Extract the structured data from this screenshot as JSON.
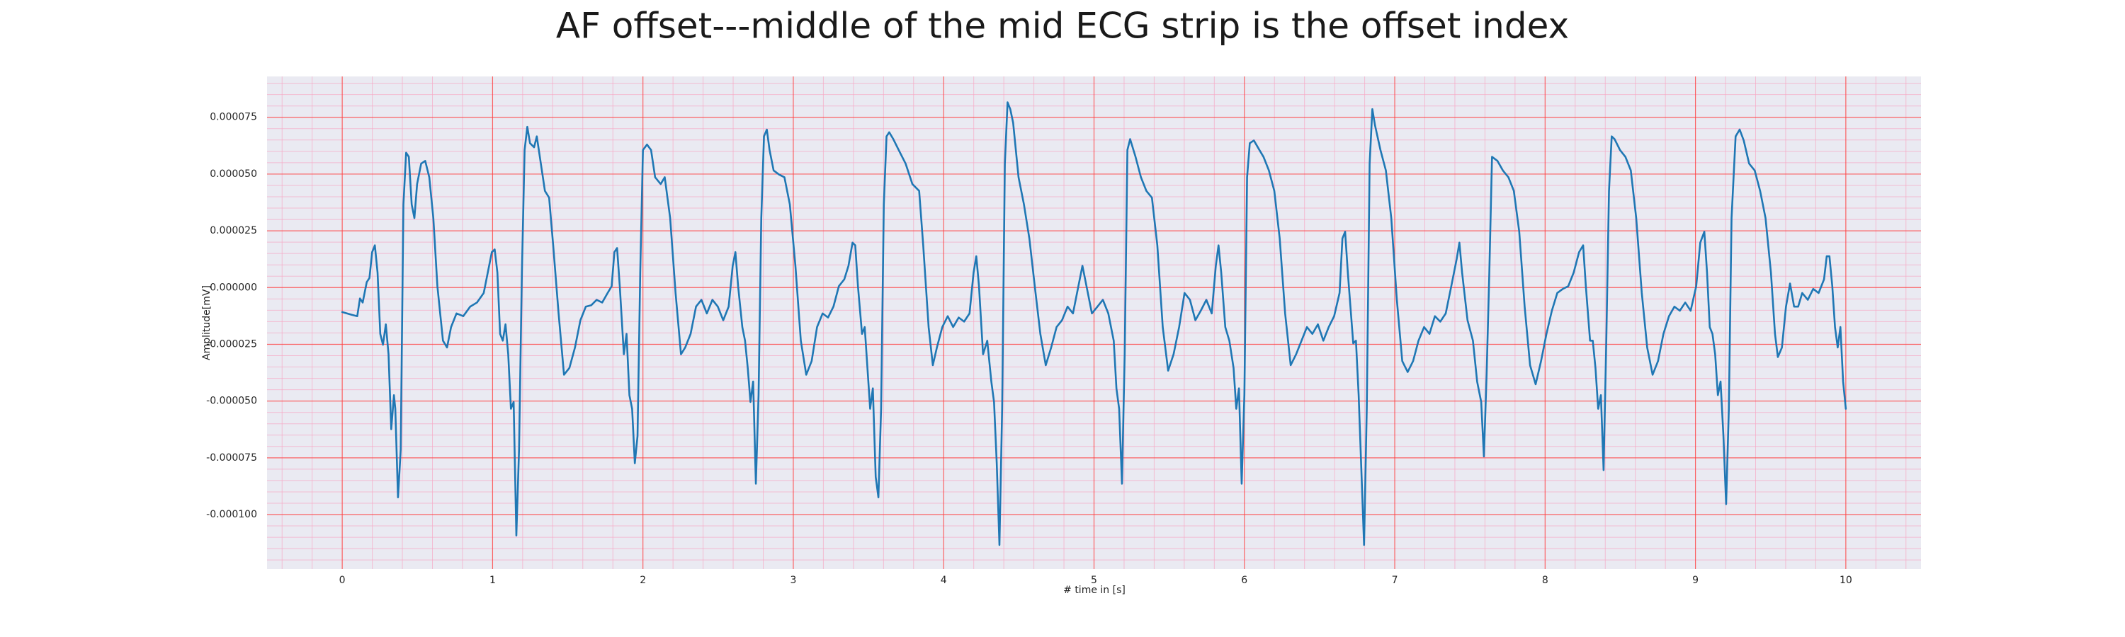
{
  "chart_data": {
    "type": "line",
    "title": "AF offset---middle of the mid ECG strip is the offset index",
    "xlabel": "# time in [s]",
    "ylabel": "Amplitude[mV]",
    "color": "#1f77b4",
    "grid": true,
    "minor_grid": true,
    "xlim": [
      -0.5,
      10.5
    ],
    "ylim": [
      -0.000124,
      9.3e-05
    ],
    "xticks": [
      0,
      1,
      2,
      3,
      4,
      5,
      6,
      7,
      8,
      9,
      10
    ],
    "yticks": [
      {
        "value": -0.0001,
        "label": "-0.000100"
      },
      {
        "value": -7.5e-05,
        "label": "-0.000075"
      },
      {
        "value": -5e-05,
        "label": "-0.000050"
      },
      {
        "value": -2.5e-05,
        "label": "-0.000025"
      },
      {
        "value": 0,
        "label": "0.000000"
      },
      {
        "value": 2.5e-05,
        "label": "0.000025"
      },
      {
        "value": 5e-05,
        "label": "0.000050"
      },
      {
        "value": 7.5e-05,
        "label": "0.000075"
      }
    ],
    "x": [
      0,
      0.063,
      0.1,
      0.118,
      0.136,
      0.163,
      0.181,
      0.199,
      0.217,
      0.235,
      0.253,
      0.271,
      0.29,
      0.308,
      0.326,
      0.344,
      0.353,
      0.371,
      0.389,
      0.407,
      0.425,
      0.443,
      0.462,
      0.48,
      0.498,
      0.525,
      0.552,
      0.579,
      0.606,
      0.633,
      0.67,
      0.697,
      0.724,
      0.76,
      0.805,
      0.851,
      0.896,
      0.941,
      0.968,
      0.995,
      1.014,
      1.032,
      1.05,
      1.068,
      1.086,
      1.104,
      1.122,
      1.14,
      1.158,
      1.176,
      1.195,
      1.213,
      1.231,
      1.249,
      1.276,
      1.294,
      1.321,
      1.348,
      1.376,
      1.403,
      1.439,
      1.475,
      1.511,
      1.548,
      1.584,
      1.62,
      1.656,
      1.692,
      1.729,
      1.765,
      1.792,
      1.81,
      1.828,
      1.846,
      1.873,
      1.891,
      1.91,
      1.928,
      1.946,
      1.964,
      1.982,
      2.0,
      2.027,
      2.054,
      2.081,
      2.118,
      2.145,
      2.181,
      2.217,
      2.253,
      2.281,
      2.317,
      2.353,
      2.389,
      2.425,
      2.462,
      2.498,
      2.534,
      2.57,
      2.597,
      2.615,
      2.633,
      2.661,
      2.679,
      2.697,
      2.715,
      2.733,
      2.751,
      2.769,
      2.787,
      2.805,
      2.824,
      2.842,
      2.869,
      2.905,
      2.941,
      2.977,
      3.014,
      3.05,
      3.086,
      3.122,
      3.158,
      3.195,
      3.231,
      3.267,
      3.303,
      3.339,
      3.367,
      3.394,
      3.412,
      3.43,
      3.457,
      3.475,
      3.493,
      3.511,
      3.529,
      3.548,
      3.566,
      3.584,
      3.602,
      3.62,
      3.638,
      3.665,
      3.701,
      3.747,
      3.792,
      3.837,
      3.864,
      3.9,
      3.928,
      3.955,
      3.991,
      4.027,
      4.063,
      4.1,
      4.136,
      4.172,
      4.199,
      4.217,
      4.235,
      4.262,
      4.29,
      4.317,
      4.335,
      4.353,
      4.371,
      4.389,
      4.407,
      4.425,
      4.443,
      4.462,
      4.498,
      4.534,
      4.57,
      4.606,
      4.643,
      4.679,
      4.715,
      4.751,
      4.787,
      4.824,
      4.86,
      4.896,
      4.923,
      4.95,
      4.986,
      5.023,
      5.059,
      5.095,
      5.131,
      5.149,
      5.167,
      5.186,
      5.204,
      5.222,
      5.24,
      5.276,
      5.312,
      5.348,
      5.385,
      5.421,
      5.457,
      5.493,
      5.529,
      5.566,
      5.602,
      5.638,
      5.674,
      5.71,
      5.747,
      5.783,
      5.81,
      5.828,
      5.846,
      5.873,
      5.9,
      5.928,
      5.946,
      5.964,
      5.982,
      6.0,
      6.018,
      6.036,
      6.063,
      6.1,
      6.127,
      6.163,
      6.199,
      6.235,
      6.271,
      6.308,
      6.344,
      6.38,
      6.416,
      6.452,
      6.489,
      6.525,
      6.561,
      6.597,
      6.633,
      6.652,
      6.67,
      6.688,
      6.724,
      6.742,
      6.76,
      6.778,
      6.796,
      6.814,
      6.833,
      6.851,
      6.869,
      6.905,
      6.941,
      6.977,
      7.014,
      7.05,
      7.086,
      7.122,
      7.158,
      7.195,
      7.231,
      7.267,
      7.303,
      7.339,
      7.376,
      7.412,
      7.43,
      7.448,
      7.484,
      7.52,
      7.548,
      7.575,
      7.593,
      7.611,
      7.629,
      7.647,
      7.683,
      7.719,
      7.756,
      7.792,
      7.828,
      7.864,
      7.9,
      7.937,
      7.973,
      8.009,
      8.045,
      8.081,
      8.118,
      8.154,
      8.19,
      8.226,
      8.253,
      8.271,
      8.299,
      8.317,
      8.335,
      8.353,
      8.371,
      8.389,
      8.407,
      8.425,
      8.443,
      8.462,
      8.498,
      8.534,
      8.57,
      8.606,
      8.643,
      8.679,
      8.715,
      8.751,
      8.787,
      8.824,
      8.86,
      8.896,
      8.932,
      8.968,
      9.005,
      9.032,
      9.059,
      9.077,
      9.095,
      9.113,
      9.131,
      9.149,
      9.167,
      9.186,
      9.204,
      9.222,
      9.24,
      9.267,
      9.294,
      9.321,
      9.357,
      9.394,
      9.43,
      9.466,
      9.502,
      9.529,
      9.548,
      9.575,
      9.602,
      9.629,
      9.656,
      9.683,
      9.71,
      9.747,
      9.783,
      9.819,
      9.855,
      9.873,
      9.891,
      9.91,
      9.928,
      9.946,
      9.964,
      9.982,
      10.0
    ],
    "values": [
      -1.08e-05,
      -1.2e-05,
      -1.26e-05,
      -4.8e-06,
      -6.6e-06,
      2.4e-06,
      4.2e-06,
      1.56e-05,
      1.86e-05,
      6.6e-06,
      -2.04e-05,
      -2.52e-05,
      -1.62e-05,
      -2.94e-05,
      -6.24e-05,
      -4.74e-05,
      -5.34e-05,
      -9.24e-05,
      -7.14e-05,
      3.66e-05,
      5.94e-05,
      5.76e-05,
      3.66e-05,
      3.06e-05,
      4.56e-05,
      5.46e-05,
      5.58e-05,
      4.86e-05,
      3.06e-05,
      6e-07,
      -2.34e-05,
      -2.64e-05,
      -1.74e-05,
      -1.14e-05,
      -1.26e-05,
      -8.4e-06,
      -6.6e-06,
      -2.4e-06,
      6.6e-06,
      1.56e-05,
      1.68e-05,
      6.6e-06,
      -2.04e-05,
      -2.34e-05,
      -1.62e-05,
      -2.94e-05,
      -5.34e-05,
      -5.04e-05,
      -0.0001092,
      -7.14e-05,
      6.6e-06,
      6.06e-05,
      7.08e-05,
      6.36e-05,
      6.18e-05,
      6.66e-05,
      5.46e-05,
      4.26e-05,
      3.96e-05,
      1.86e-05,
      -1.14e-05,
      -3.84e-05,
      -3.54e-05,
      -2.64e-05,
      -1.44e-05,
      -8.4e-06,
      -7.8e-06,
      -5.4e-06,
      -6.6e-06,
      -2.4e-06,
      6e-07,
      1.56e-05,
      1.74e-05,
      6e-07,
      -2.94e-05,
      -2.04e-05,
      -4.74e-05,
      -5.34e-05,
      -7.74e-05,
      -6.54e-05,
      6.6e-06,
      6.06e-05,
      6.3e-05,
      6.06e-05,
      4.86e-05,
      4.56e-05,
      4.86e-05,
      3.06e-05,
      -2.4e-06,
      -2.94e-05,
      -2.64e-05,
      -2.04e-05,
      -8.4e-06,
      -5.4e-06,
      -1.14e-05,
      -5.4e-06,
      -8.4e-06,
      -1.44e-05,
      -8.4e-06,
      9.6e-06,
      1.56e-05,
      6e-07,
      -1.74e-05,
      -2.34e-05,
      -3.54e-05,
      -5.04e-05,
      -4.14e-05,
      -8.64e-05,
      -4.74e-05,
      3.06e-05,
      6.66e-05,
      6.96e-05,
      6.06e-05,
      5.16e-05,
      4.98e-05,
      4.86e-05,
      3.66e-05,
      9.6e-06,
      -2.34e-05,
      -3.84e-05,
      -3.24e-05,
      -1.74e-05,
      -1.14e-05,
      -1.32e-05,
      -8.4e-06,
      6e-07,
      3.6e-06,
      9.6e-06,
      1.98e-05,
      1.86e-05,
      6e-07,
      -2.04e-05,
      -1.74e-05,
      -3.54e-05,
      -5.34e-05,
      -4.44e-05,
      -8.34e-05,
      -9.24e-05,
      -5.34e-05,
      3.66e-05,
      6.66e-05,
      6.84e-05,
      6.54e-05,
      6.06e-05,
      5.46e-05,
      4.56e-05,
      4.26e-05,
      1.86e-05,
      -1.74e-05,
      -3.42e-05,
      -2.64e-05,
      -1.74e-05,
      -1.26e-05,
      -1.74e-05,
      -1.32e-05,
      -1.5e-05,
      -1.14e-05,
      6.6e-06,
      1.38e-05,
      6e-07,
      -2.94e-05,
      -2.34e-05,
      -4.14e-05,
      -5.04e-05,
      -7.74e-05,
      -0.0001134,
      -5.34e-05,
      5.46e-05,
      8.16e-05,
      7.86e-05,
      7.26e-05,
      4.86e-05,
      3.66e-05,
      2.16e-05,
      6e-07,
      -2.04e-05,
      -3.42e-05,
      -2.64e-05,
      -1.74e-05,
      -1.44e-05,
      -8.4e-06,
      -1.14e-05,
      6e-07,
      9.6e-06,
      6e-07,
      -1.14e-05,
      -8.4e-06,
      -5.4e-06,
      -1.14e-05,
      -2.34e-05,
      -4.44e-05,
      -5.34e-05,
      -8.64e-05,
      -2.94e-05,
      6.06e-05,
      6.54e-05,
      5.76e-05,
      4.86e-05,
      4.26e-05,
      3.96e-05,
      1.86e-05,
      -1.74e-05,
      -3.66e-05,
      -2.94e-05,
      -1.74e-05,
      -2.4e-06,
      -5.4e-06,
      -1.44e-05,
      -1.02e-05,
      -5.4e-06,
      -1.14e-05,
      9.6e-06,
      1.86e-05,
      6.6e-06,
      -1.74e-05,
      -2.34e-05,
      -3.54e-05,
      -5.34e-05,
      -4.44e-05,
      -8.64e-05,
      -4.74e-05,
      4.86e-05,
      6.36e-05,
      6.48e-05,
      6.06e-05,
      5.76e-05,
      5.16e-05,
      4.26e-05,
      2.16e-05,
      -1.14e-05,
      -3.42e-05,
      -2.94e-05,
      -2.34e-05,
      -1.74e-05,
      -2.04e-05,
      -1.62e-05,
      -2.34e-05,
      -1.74e-05,
      -1.26e-05,
      -2.4e-06,
      2.16e-05,
      2.46e-05,
      6.6e-06,
      -2.46e-05,
      -2.34e-05,
      -4.74e-05,
      -8.04e-05,
      -0.0001134,
      -5.34e-05,
      5.46e-05,
      7.86e-05,
      7.14e-05,
      6.06e-05,
      5.16e-05,
      3.06e-05,
      -5.4e-06,
      -3.24e-05,
      -3.72e-05,
      -3.24e-05,
      -2.34e-05,
      -1.74e-05,
      -2.04e-05,
      -1.26e-05,
      -1.5e-05,
      -1.14e-05,
      6e-07,
      1.26e-05,
      1.98e-05,
      6.6e-06,
      -1.44e-05,
      -2.34e-05,
      -4.14e-05,
      -5.04e-05,
      -7.44e-05,
      -3.84e-05,
      6.6e-06,
      5.76e-05,
      5.58e-05,
      5.16e-05,
      4.86e-05,
      4.26e-05,
      2.46e-05,
      -8.4e-06,
      -3.42e-05,
      -4.26e-05,
      -3.24e-05,
      -2.04e-05,
      -1.02e-05,
      -2.4e-06,
      -6e-07,
      6e-07,
      6.6e-06,
      1.56e-05,
      1.86e-05,
      6e-07,
      -2.34e-05,
      -2.34e-05,
      -3.54e-05,
      -5.34e-05,
      -4.74e-05,
      -8.04e-05,
      -2.34e-05,
      4.26e-05,
      6.66e-05,
      6.54e-05,
      6.06e-05,
      5.76e-05,
      5.16e-05,
      3.06e-05,
      -2.4e-06,
      -2.64e-05,
      -3.84e-05,
      -3.24e-05,
      -2.04e-05,
      -1.26e-05,
      -8.4e-06,
      -1.02e-05,
      -6.6e-06,
      -1.02e-05,
      6e-07,
      1.98e-05,
      2.46e-05,
      6.6e-06,
      -1.74e-05,
      -2.04e-05,
      -2.94e-05,
      -4.74e-05,
      -4.14e-05,
      -6.54e-05,
      -9.54e-05,
      -5.34e-05,
      3.06e-05,
      6.66e-05,
      6.96e-05,
      6.48e-05,
      5.46e-05,
      5.16e-05,
      4.26e-05,
      3.06e-05,
      6.6e-06,
      -2.04e-05,
      -3.06e-05,
      -2.64e-05,
      -8.4e-06,
      1.8e-06,
      -8.4e-06,
      -8.4e-06,
      -2.4e-06,
      -5.4e-06,
      -6e-07,
      -2.4e-06,
      3.6e-06,
      1.38e-05,
      1.38e-05,
      6e-07,
      -1.74e-05,
      -2.64e-05,
      -1.74e-05,
      -4.14e-05,
      -5.34e-05
    ]
  }
}
